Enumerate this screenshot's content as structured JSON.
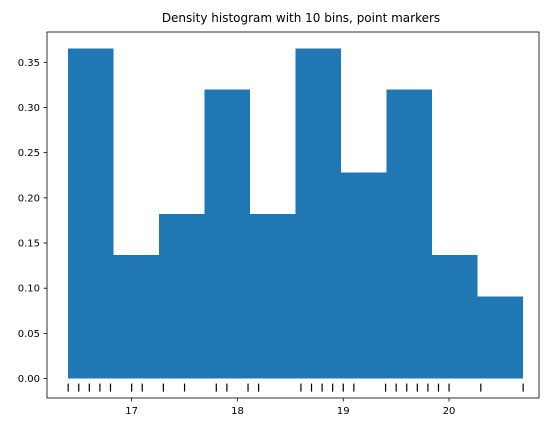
{
  "chart_data": {
    "type": "bar",
    "title": "Density histogram with 10 bins, point markers",
    "xlabel": "",
    "ylabel": "",
    "xlim": [
      16.2,
      20.85
    ],
    "ylim": [
      -0.0215,
      0.3835
    ],
    "grid": false,
    "bar_color": "#1f77b4",
    "marker_color": "#000000",
    "bins": [
      {
        "x0": 16.4,
        "x1": 16.83,
        "density": 0.365
      },
      {
        "x0": 16.83,
        "x1": 17.26,
        "density": 0.137
      },
      {
        "x0": 17.26,
        "x1": 17.69,
        "density": 0.182
      },
      {
        "x0": 17.69,
        "x1": 18.12,
        "density": 0.32
      },
      {
        "x0": 18.12,
        "x1": 18.55,
        "density": 0.182
      },
      {
        "x0": 18.55,
        "x1": 18.98,
        "density": 0.365
      },
      {
        "x0": 18.98,
        "x1": 19.41,
        "density": 0.228
      },
      {
        "x0": 19.41,
        "x1": 19.84,
        "density": 0.32
      },
      {
        "x0": 19.84,
        "x1": 20.27,
        "density": 0.137
      },
      {
        "x0": 20.27,
        "x1": 20.7,
        "density": 0.091
      }
    ],
    "points": [
      16.4,
      16.5,
      16.6,
      16.7,
      16.8,
      17.0,
      17.1,
      17.3,
      17.5,
      17.8,
      17.9,
      18.1,
      18.2,
      18.6,
      18.7,
      18.8,
      18.9,
      19.0,
      19.1,
      19.4,
      19.5,
      19.6,
      19.7,
      19.8,
      19.9,
      20.0,
      20.3,
      20.7
    ],
    "marker_y": -0.01,
    "x_ticks": [
      {
        "value": 17,
        "label": "17"
      },
      {
        "value": 18,
        "label": "18"
      },
      {
        "value": 19,
        "label": "19"
      },
      {
        "value": 20,
        "label": "20"
      }
    ],
    "y_ticks": [
      {
        "value": 0.0,
        "label": "0.00"
      },
      {
        "value": 0.05,
        "label": "0.05"
      },
      {
        "value": 0.1,
        "label": "0.10"
      },
      {
        "value": 0.15,
        "label": "0.15"
      },
      {
        "value": 0.2,
        "label": "0.20"
      },
      {
        "value": 0.25,
        "label": "0.25"
      },
      {
        "value": 0.3,
        "label": "0.30"
      },
      {
        "value": 0.35,
        "label": "0.35"
      }
    ]
  }
}
